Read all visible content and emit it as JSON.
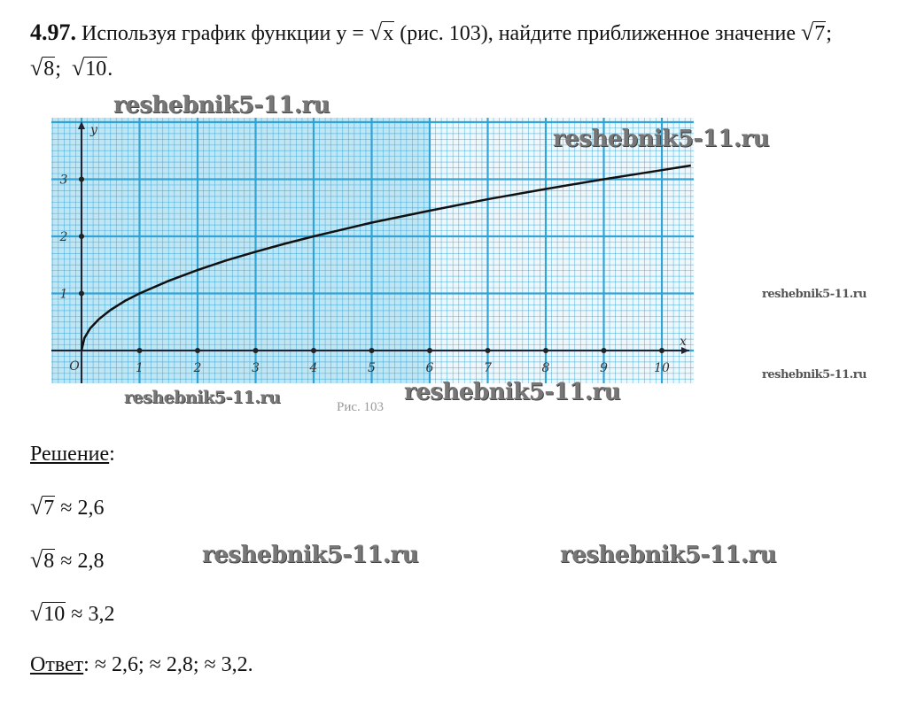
{
  "problem": {
    "number": "4.97.",
    "text_before": "Используя график функции y = ",
    "function_arg": "x",
    "text_after": " (рис. 103), найдите приближенное значение ",
    "roots": [
      "7",
      "8",
      "10"
    ],
    "sep": ";"
  },
  "figure": {
    "caption": "Рис. 103"
  },
  "chart_data": {
    "type": "line",
    "function": "y = √x",
    "x_axis_label": "x",
    "y_axis_label": "y",
    "origin_label": "O",
    "x_ticks": [
      1,
      2,
      3,
      4,
      5,
      6,
      7,
      8,
      9,
      10
    ],
    "y_ticks": [
      1,
      2,
      3
    ],
    "xlim": [
      -0.5,
      10.5
    ],
    "ylim": [
      -0.5,
      4.1
    ],
    "grid": true,
    "grid_color": "#2aa0d4",
    "fill_color": "#bfe6f4",
    "series": [
      {
        "x": [
          0,
          0.05,
          0.15,
          0.3,
          0.5,
          0.75,
          1,
          1.5,
          2,
          2.5,
          3,
          3.5,
          4,
          5,
          6,
          7,
          8,
          9,
          10,
          10.5
        ],
        "y": [
          0,
          0.22,
          0.39,
          0.55,
          0.71,
          0.87,
          1,
          1.22,
          1.41,
          1.58,
          1.73,
          1.87,
          2,
          2.24,
          2.45,
          2.65,
          2.83,
          3,
          3.16,
          3.24
        ]
      }
    ]
  },
  "solution": {
    "heading": "Решение",
    "colon": ":",
    "rows": [
      {
        "arg": "7",
        "value": "≈ 2,6"
      },
      {
        "arg": "8",
        "value": "≈ 2,8"
      },
      {
        "arg": "10",
        "value": "≈ 3,2"
      }
    ],
    "answer_label": "Ответ",
    "answer_text": ":  ≈ 2,6;  ≈ 2,8;   ≈ 3,2."
  },
  "watermark": "reshebnik5-11.ru"
}
